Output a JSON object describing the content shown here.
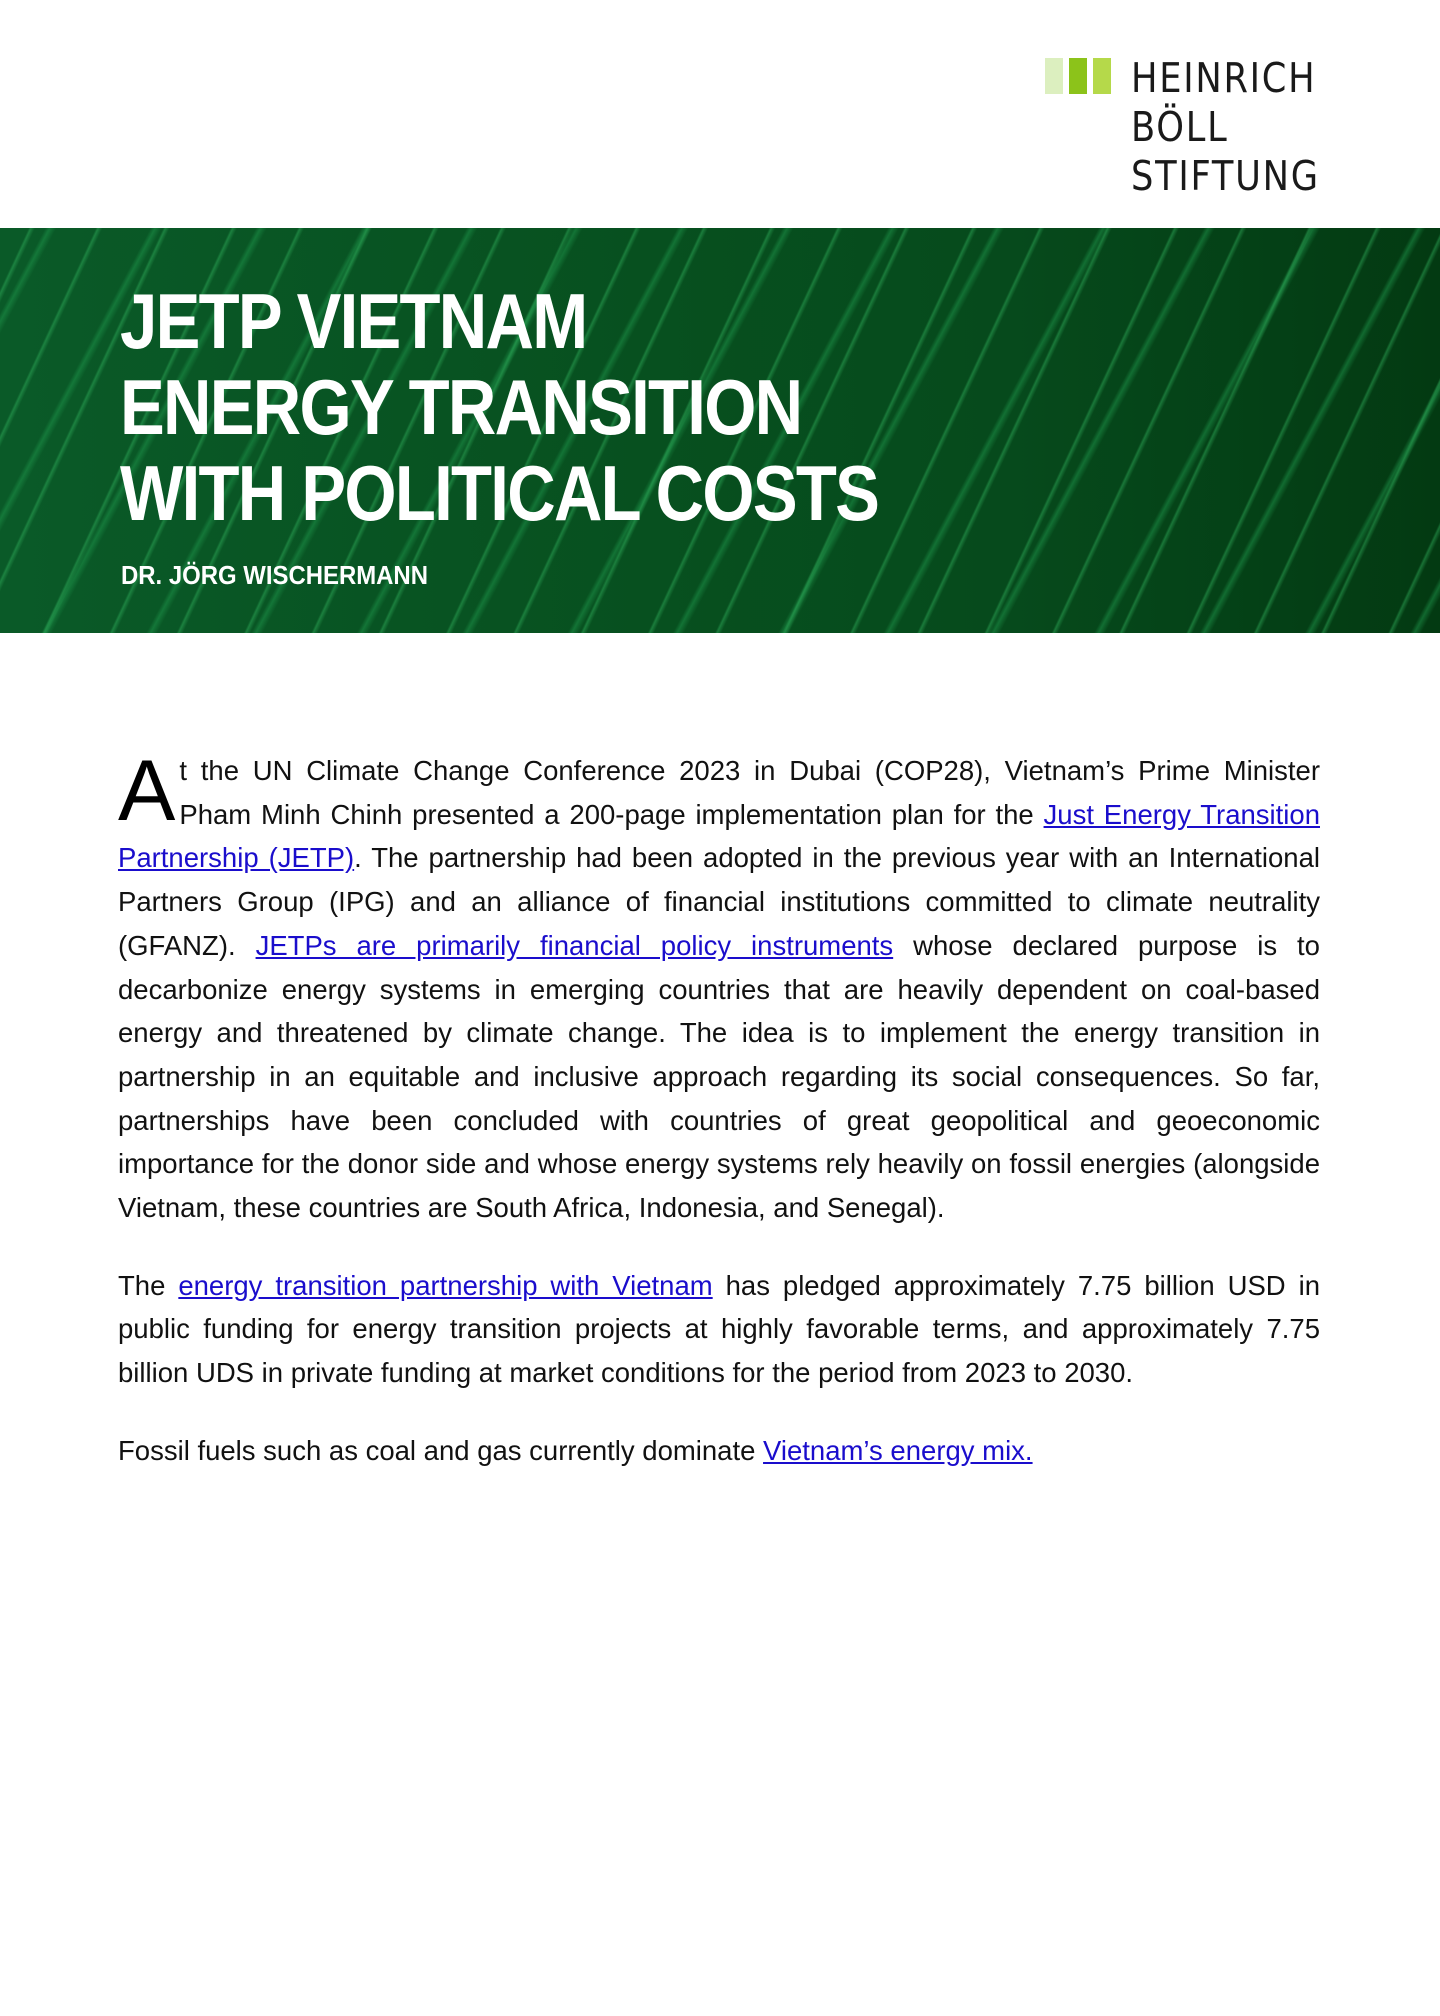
{
  "logo": {
    "lines": [
      "HEINRICH",
      "BÖLL",
      "STIFTUNG"
    ],
    "colors": [
      "#dcefbf",
      "#8cc31a",
      "#b5d94a"
    ]
  },
  "banner": {
    "title_lines": [
      "JETP VIETNAM",
      "ENERGY TRANSITION",
      "WITH POLITICAL COSTS"
    ],
    "author": "DR. JÖRG WISCHERMANN",
    "color": "#07501f"
  },
  "article": {
    "p1": {
      "dropcap": "A",
      "t1": "t the UN Climate Change Conference 2023 in Dubai (COP28), Vietnam’s Prime Minister Pham Minh Chinh presented a 200-page implementation plan for the ",
      "link1": "Just Energy Transition Partnership (JETP)",
      "t2": ". The partnership had been adopted in the previous year with an International Partners Group (IPG) and an alliance of financial institutions committed to climate neutrality (GFANZ). ",
      "link2": "JETPs are primarily financial policy instruments",
      "t3": " whose declared purpose is to decarbonize energy systems in emerging countries that are heavily dependent on coal-based energy and threatened by climate change. The idea is to implement the energy transition in partnership in an equitable and inclusive approach regarding its social consequences. So far, partnerships have been concluded with countries of great geopolitical and geoeconomic importance for the donor side and whose energy systems rely heavily on fossil energies (alongside Vietnam, these countries are South Africa, Indonesia, and Senegal)."
    },
    "p2": {
      "t1": "The ",
      "link1": "energy transition partnership with Vietnam",
      "t2": " has pledged approximately 7.75 billion USD in public funding for energy transition projects at highly favorable terms, and approximately 7.75 billion UDS in private funding at market conditions for the period from 2023 to 2030."
    },
    "p3": {
      "t1": "Fossil fuels such as coal and gas currently dominate ",
      "link1": "Vietnam’s energy mix."
    },
    "link_color": "#1a0dcc"
  }
}
